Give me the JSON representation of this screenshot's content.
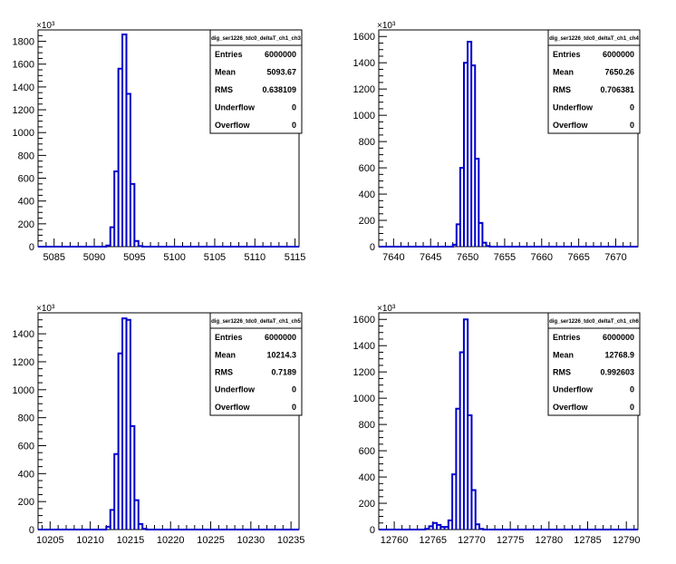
{
  "chart_data": [
    {
      "type": "histogram",
      "title": "",
      "multiplier_label": "×10³",
      "stats": {
        "name": "dig_ser1226_tdc0_deltaT_ch1_ch3",
        "rows": [
          {
            "label": "Entries",
            "value": "6000000"
          },
          {
            "label": "Mean",
            "value": "5093.67"
          },
          {
            "label": "RMS",
            "value": "0.638109"
          },
          {
            "label": "Underflow",
            "value": "0"
          },
          {
            "label": "Overflow",
            "value": "0"
          }
        ]
      },
      "xlim": [
        5083,
        5115.5
      ],
      "ylim": [
        0,
        1900
      ],
      "xticks": [
        5085,
        5090,
        5095,
        5100,
        5105,
        5110,
        5115
      ],
      "yticks": [
        0,
        200,
        400,
        600,
        800,
        1000,
        1200,
        1400,
        1600,
        1800
      ],
      "bin_width": 0.5,
      "bins": [
        {
          "x": 5091.5,
          "y": 10
        },
        {
          "x": 5092.0,
          "y": 170
        },
        {
          "x": 5092.5,
          "y": 660
        },
        {
          "x": 5093.0,
          "y": 1560
        },
        {
          "x": 5093.5,
          "y": 1860
        },
        {
          "x": 5094.0,
          "y": 1340
        },
        {
          "x": 5094.5,
          "y": 550
        },
        {
          "x": 5095.0,
          "y": 50
        },
        {
          "x": 5095.5,
          "y": 5
        }
      ]
    },
    {
      "type": "histogram",
      "title": "",
      "multiplier_label": "×10³",
      "stats": {
        "name": "dig_ser1226_tdc0_deltaT_ch1_ch4",
        "rows": [
          {
            "label": "Entries",
            "value": "6000000"
          },
          {
            "label": "Mean",
            "value": "7650.26"
          },
          {
            "label": "RMS",
            "value": "0.706381"
          },
          {
            "label": "Underflow",
            "value": "0"
          },
          {
            "label": "Overflow",
            "value": "0"
          }
        ]
      },
      "xlim": [
        7638,
        7673
      ],
      "ylim": [
        0,
        1650
      ],
      "xticks": [
        7640,
        7645,
        7650,
        7655,
        7660,
        7665,
        7670
      ],
      "yticks": [
        0,
        200,
        400,
        600,
        800,
        1000,
        1200,
        1400,
        1600
      ],
      "bin_width": 0.5,
      "bins": [
        {
          "x": 7648.0,
          "y": 15
        },
        {
          "x": 7648.5,
          "y": 170
        },
        {
          "x": 7649.0,
          "y": 600
        },
        {
          "x": 7649.5,
          "y": 1400
        },
        {
          "x": 7650.0,
          "y": 1560
        },
        {
          "x": 7650.5,
          "y": 1380
        },
        {
          "x": 7651.0,
          "y": 670
        },
        {
          "x": 7651.5,
          "y": 180
        },
        {
          "x": 7652.0,
          "y": 30
        },
        {
          "x": 7652.5,
          "y": 5
        }
      ]
    },
    {
      "type": "histogram",
      "title": "",
      "multiplier_label": "×10³",
      "stats": {
        "name": "dig_ser1226_tdc0_deltaT_ch1_ch5",
        "rows": [
          {
            "label": "Entries",
            "value": "6000000"
          },
          {
            "label": "Mean",
            "value": "10214.3"
          },
          {
            "label": "RMS",
            "value": "0.7189"
          },
          {
            "label": "Underflow",
            "value": "0"
          },
          {
            "label": "Overflow",
            "value": "0"
          }
        ]
      },
      "xlim": [
        10203.5,
        10236
      ],
      "ylim": [
        0,
        1550
      ],
      "xticks": [
        10205,
        10210,
        10215,
        10220,
        10225,
        10230,
        10235
      ],
      "yticks": [
        0,
        200,
        400,
        600,
        800,
        1000,
        1200,
        1400
      ],
      "bin_width": 0.5,
      "bins": [
        {
          "x": 10212.0,
          "y": 20
        },
        {
          "x": 10212.5,
          "y": 140
        },
        {
          "x": 10213.0,
          "y": 540
        },
        {
          "x": 10213.5,
          "y": 1260
        },
        {
          "x": 10214.0,
          "y": 1510
        },
        {
          "x": 10214.5,
          "y": 1500
        },
        {
          "x": 10215.0,
          "y": 740
        },
        {
          "x": 10215.5,
          "y": 210
        },
        {
          "x": 10216.0,
          "y": 40
        },
        {
          "x": 10216.5,
          "y": 5
        }
      ]
    },
    {
      "type": "histogram",
      "title": "",
      "multiplier_label": "×10³",
      "stats": {
        "name": "dig_ser1226_tdc0_deltaT_ch1_ch6",
        "rows": [
          {
            "label": "Entries",
            "value": "6000000"
          },
          {
            "label": "Mean",
            "value": "12768.9"
          },
          {
            "label": "RMS",
            "value": "0.992603"
          },
          {
            "label": "Underflow",
            "value": "0"
          },
          {
            "label": "Overflow",
            "value": "0"
          }
        ]
      },
      "xlim": [
        12758,
        12791.5
      ],
      "ylim": [
        0,
        1650
      ],
      "xticks": [
        12760,
        12765,
        12770,
        12775,
        12780,
        12785,
        12790
      ],
      "yticks": [
        0,
        200,
        400,
        600,
        800,
        1000,
        1200,
        1400,
        1600
      ],
      "bin_width": 0.5,
      "bins": [
        {
          "x": 12764.0,
          "y": 5
        },
        {
          "x": 12764.5,
          "y": 25
        },
        {
          "x": 12765.0,
          "y": 50
        },
        {
          "x": 12765.5,
          "y": 35
        },
        {
          "x": 12766.0,
          "y": 20
        },
        {
          "x": 12766.5,
          "y": 20
        },
        {
          "x": 12767.0,
          "y": 70
        },
        {
          "x": 12767.5,
          "y": 420
        },
        {
          "x": 12768.0,
          "y": 920
        },
        {
          "x": 12768.5,
          "y": 1350
        },
        {
          "x": 12769.0,
          "y": 1600
        },
        {
          "x": 12769.5,
          "y": 870
        },
        {
          "x": 12770.0,
          "y": 300
        },
        {
          "x": 12770.5,
          "y": 40
        },
        {
          "x": 12771.0,
          "y": 5
        }
      ]
    }
  ]
}
